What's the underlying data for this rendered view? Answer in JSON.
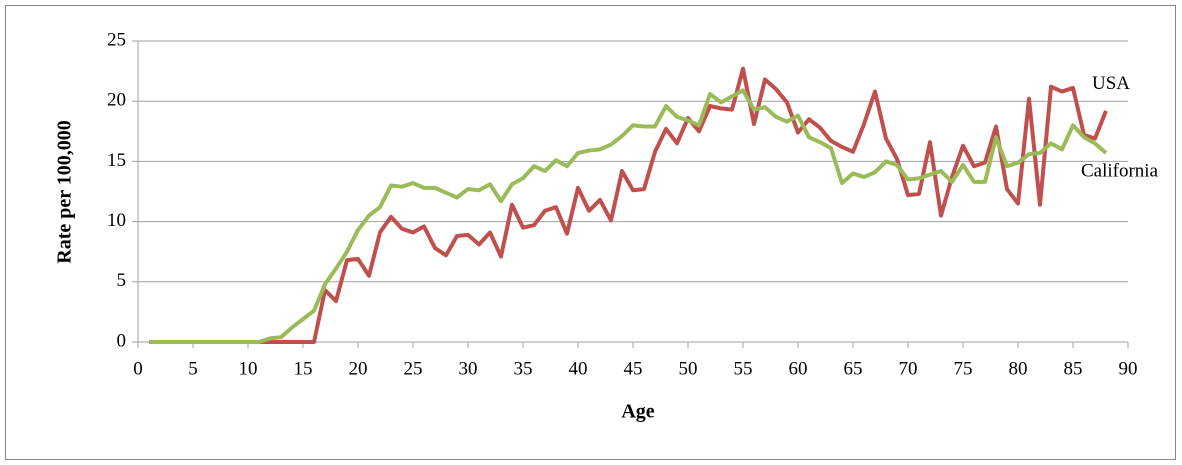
{
  "chart_data": {
    "type": "line",
    "x_label": "Age",
    "y_label": "Rate per 100,000",
    "x": [
      1,
      2,
      3,
      4,
      5,
      6,
      7,
      8,
      9,
      10,
      11,
      12,
      13,
      14,
      15,
      16,
      17,
      18,
      19,
      20,
      21,
      22,
      23,
      24,
      25,
      26,
      27,
      28,
      29,
      30,
      31,
      32,
      33,
      34,
      35,
      36,
      37,
      38,
      39,
      40,
      41,
      42,
      43,
      44,
      45,
      46,
      47,
      48,
      49,
      50,
      51,
      52,
      53,
      54,
      55,
      56,
      57,
      58,
      59,
      60,
      61,
      62,
      63,
      64,
      65,
      66,
      67,
      68,
      69,
      70,
      71,
      72,
      73,
      74,
      75,
      76,
      77,
      78,
      79,
      80,
      81,
      82,
      83,
      84,
      85,
      86,
      87,
      88
    ],
    "series": [
      {
        "name": "USA",
        "color": "#c0504d",
        "values": [
          0,
          0,
          0,
          0,
          0,
          0,
          0,
          0,
          0,
          0,
          0,
          0,
          0,
          0,
          0,
          0,
          4.3,
          3.4,
          6.8,
          6.9,
          5.5,
          9.1,
          10.4,
          9.4,
          9.1,
          9.6,
          7.8,
          7.2,
          8.8,
          8.9,
          8.1,
          9.1,
          7.1,
          11.4,
          9.5,
          9.7,
          10.9,
          11.2,
          9.0,
          12.8,
          10.9,
          11.8,
          10.1,
          14.2,
          12.6,
          12.7,
          15.8,
          17.7,
          16.5,
          18.6,
          17.5,
          19.6,
          19.4,
          19.3,
          22.7,
          18.1,
          21.8,
          21.0,
          19.9,
          17.4,
          18.5,
          17.8,
          16.7,
          16.2,
          15.8,
          18.1,
          20.8,
          16.9,
          15.2,
          12.2,
          12.3,
          16.6,
          10.5,
          13.7,
          16.3,
          14.6,
          14.9,
          17.9,
          12.7,
          11.5,
          20.2,
          11.4,
          21.2,
          20.8,
          21.1,
          17.2,
          16.9,
          19.2
        ]
      },
      {
        "name": "California",
        "color": "#9bbb59",
        "values": [
          0,
          0,
          0,
          0,
          0,
          0,
          0,
          0,
          0,
          0,
          0,
          0.3,
          0.4,
          1.2,
          1.9,
          2.6,
          4.8,
          6.1,
          7.5,
          9.3,
          10.5,
          11.2,
          13.0,
          12.9,
          13.2,
          12.8,
          12.8,
          12.4,
          12.0,
          12.7,
          12.6,
          13.1,
          11.7,
          13.1,
          13.6,
          14.6,
          14.2,
          15.1,
          14.6,
          15.7,
          15.9,
          16.0,
          16.4,
          17.1,
          18.0,
          17.9,
          17.9,
          19.6,
          18.7,
          18.4,
          18.0,
          20.6,
          19.9,
          20.4,
          20.9,
          19.3,
          19.5,
          18.7,
          18.3,
          18.8,
          17.0,
          16.6,
          16.1,
          13.2,
          14.0,
          13.7,
          14.1,
          15.0,
          14.7,
          13.5,
          13.6,
          13.9,
          14.2,
          13.3,
          14.7,
          13.3,
          13.3,
          17.0,
          14.6,
          14.9,
          15.6,
          15.7,
          16.5,
          16.0,
          18.0,
          17.0,
          16.5,
          15.7
        ]
      }
    ],
    "xlim": [
      0,
      90
    ],
    "xticks": [
      0,
      5,
      10,
      15,
      20,
      25,
      30,
      35,
      40,
      45,
      50,
      55,
      60,
      65,
      70,
      75,
      80,
      85,
      90
    ],
    "ylim": [
      0,
      25
    ],
    "yticks": [
      0,
      5,
      10,
      15,
      20,
      25
    ],
    "grid": true
  }
}
